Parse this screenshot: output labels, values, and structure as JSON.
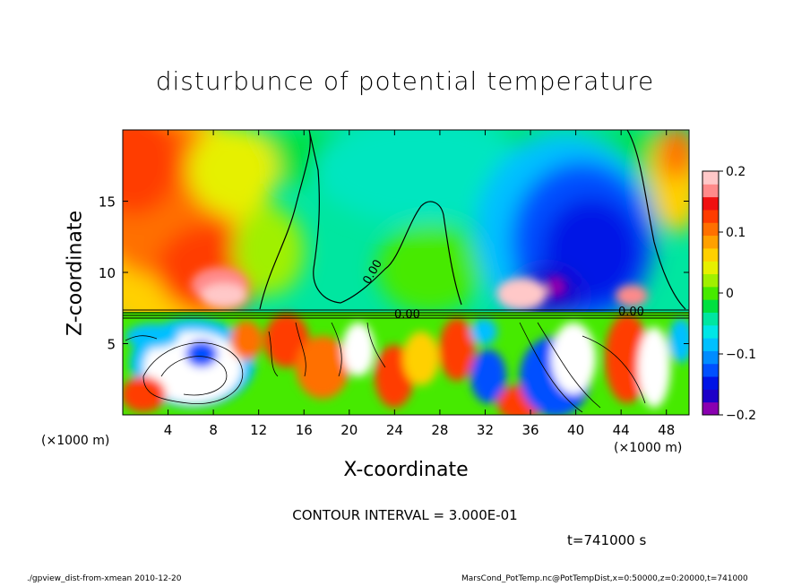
{
  "chart_data": {
    "type": "heatmap",
    "title": "disturbunce of potential temperature",
    "xlabel": "X-coordinate",
    "ylabel": "Z-coordinate",
    "x_unit": "(×1000 m)",
    "y_unit": "(×1000 m)",
    "x_ticks": [
      4,
      8,
      12,
      16,
      20,
      24,
      28,
      32,
      36,
      40,
      44,
      48
    ],
    "y_ticks": [
      5,
      10,
      15
    ],
    "xlim": [
      0,
      50
    ],
    "ylim": [
      0,
      20
    ],
    "colorbar": {
      "range": [
        -0.2,
        0.2
      ],
      "tick_labels": [
        "0.2",
        "0.1",
        "0",
        "−0.1",
        "−0.2"
      ],
      "tick_values": [
        0.2,
        0.1,
        0,
        -0.1,
        -0.2
      ],
      "colors": [
        "#8a00b0",
        "#1d00c8",
        "#0014e6",
        "#0050ff",
        "#008cff",
        "#00c0ff",
        "#00e6e6",
        "#00e6a0",
        "#00e040",
        "#46ea00",
        "#a0f000",
        "#e6f000",
        "#ffd000",
        "#ffa000",
        "#ff7000",
        "#ff3c00",
        "#f01010",
        "#ff8a8a",
        "#ffc8c8"
      ]
    },
    "contour_labels": [
      "0.00",
      "0.00",
      "0.00"
    ],
    "contour_interval": "CONTOUR INTERVAL = 3.000E-01",
    "time": "t=741000 s",
    "grid": false
  },
  "footer": {
    "left": "./gpview_dist-from-xmean  2010-12-20",
    "right": "MarsCond_PotTemp.nc@PotTempDist,x=0:50000,z=0:20000,t=741000"
  }
}
